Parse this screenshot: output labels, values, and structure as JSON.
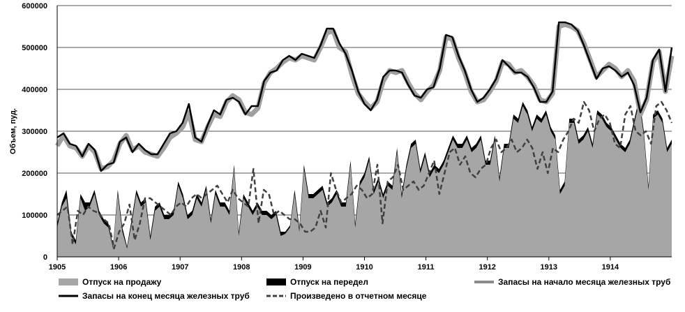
{
  "chart_data": {
    "type": "line",
    "title": "",
    "xlabel": "",
    "ylabel": "Объем, пуд.",
    "ylim": [
      0,
      600000
    ],
    "y_ticks": [
      "0",
      "100000",
      "200000",
      "300000",
      "400000",
      "500000",
      "600000"
    ],
    "x_tick_labels": [
      "1905",
      "1906",
      "1907",
      "1908",
      "1909",
      "1910",
      "1911",
      "1912",
      "1913",
      "1914"
    ],
    "x_start_year": 1905,
    "grid": "horizontal",
    "legend_position": "bottom",
    "series": [
      {
        "name": "Отпуск на продажу",
        "kind": "area",
        "color": "#a6a6a6",
        "values": [
          70000,
          120000,
          140000,
          50000,
          30000,
          140000,
          110000,
          120000,
          150000,
          100000,
          80000,
          70000,
          20000,
          150000,
          60000,
          20000,
          80000,
          150000,
          120000,
          130000,
          40000,
          110000,
          120000,
          90000,
          90000,
          100000,
          170000,
          140000,
          90000,
          100000,
          140000,
          120000,
          160000,
          80000,
          150000,
          120000,
          120000,
          100000,
          210000,
          50000,
          140000,
          120000,
          100000,
          120000,
          100000,
          100000,
          90000,
          100000,
          50000,
          55000,
          70000,
          150000,
          60000,
          210000,
          140000,
          140000,
          150000,
          160000,
          120000,
          130000,
          150000,
          120000,
          120000,
          220000,
          70000,
          170000,
          190000,
          230000,
          150000,
          180000,
          140000,
          170000,
          160000,
          250000,
          140000,
          210000,
          260000,
          270000,
          200000,
          240000,
          190000,
          210000,
          200000,
          220000,
          250000,
          280000,
          260000,
          260000,
          280000,
          250000,
          260000,
          280000,
          220000,
          220000,
          280000,
          180000,
          260000,
          260000,
          330000,
          320000,
          360000,
          340000,
          300000,
          330000,
          320000,
          340000,
          300000,
          280000,
          150000,
          170000,
          320000,
          320000,
          270000,
          280000,
          300000,
          260000,
          340000,
          330000,
          310000,
          300000,
          280000,
          260000,
          250000,
          270000,
          320000,
          370000,
          290000,
          160000,
          330000,
          340000,
          320000,
          250000,
          270000
        ],
        "values_note": ""
      },
      {
        "name": "Отпуск на передел",
        "kind": "area",
        "color": "#000000",
        "values": [
          80000,
          130000,
          160000,
          60000,
          40000,
          150000,
          130000,
          130000,
          160000,
          110000,
          90000,
          80000,
          25000,
          160000,
          70000,
          25000,
          90000,
          160000,
          130000,
          140000,
          50000,
          120000,
          130000,
          100000,
          100000,
          110000,
          180000,
          150000,
          100000,
          110000,
          150000,
          130000,
          170000,
          90000,
          160000,
          130000,
          130000,
          110000,
          220000,
          60000,
          150000,
          130000,
          110000,
          130000,
          110000,
          110000,
          100000,
          110000,
          60000,
          60000,
          75000,
          160000,
          70000,
          220000,
          150000,
          150000,
          160000,
          170000,
          130000,
          140000,
          160000,
          130000,
          130000,
          230000,
          80000,
          180000,
          200000,
          240000,
          160000,
          190000,
          150000,
          180000,
          170000,
          260000,
          150000,
          220000,
          270000,
          280000,
          210000,
          250000,
          200000,
          220000,
          210000,
          230000,
          260000,
          290000,
          270000,
          270000,
          290000,
          260000,
          270000,
          290000,
          230000,
          230000,
          290000,
          190000,
          270000,
          270000,
          340000,
          330000,
          370000,
          350000,
          310000,
          340000,
          330000,
          350000,
          310000,
          290000,
          160000,
          180000,
          330000,
          330000,
          280000,
          290000,
          310000,
          270000,
          350000,
          340000,
          320000,
          310000,
          290000,
          270000,
          260000,
          280000,
          330000,
          380000,
          300000,
          170000,
          340000,
          350000,
          330000,
          260000,
          280000
        ]
      },
      {
        "name": "Запасы на начало  месяца железных труб",
        "kind": "line",
        "color": "#8c8c8c",
        "values": [
          265000,
          290000,
          265000,
          260000,
          240000,
          265000,
          250000,
          210000,
          215000,
          230000,
          270000,
          290000,
          255000,
          265000,
          250000,
          245000,
          240000,
          260000,
          285000,
          295000,
          310000,
          345000,
          280000,
          275000,
          310000,
          340000,
          335000,
          370000,
          385000,
          375000,
          345000,
          340000,
          355000,
          415000,
          440000,
          450000,
          465000,
          475000,
          470000,
          480000,
          475000,
          470000,
          500000,
          535000,
          540000,
          500000,
          490000,
          435000,
          390000,
          370000,
          355000,
          370000,
          420000,
          445000,
          440000,
          445000,
          415000,
          390000,
          375000,
          395000,
          410000,
          445000,
          525000,
          520000,
          475000,
          440000,
          395000,
          370000,
          375000,
          395000,
          420000,
          465000,
          460000,
          440000,
          445000,
          430000,
          410000,
          375000,
          370000,
          390000,
          550000,
          555000,
          550000,
          540000,
          510000,
          470000,
          430000,
          445000,
          460000,
          450000,
          430000,
          445000,
          420000,
          340000,
          375000,
          465000,
          490000,
          395000,
          480000
        ]
      },
      {
        "name": "Запасы на конец  месяца железных труб",
        "kind": "line",
        "color": "#000000",
        "values": [
          285000,
          295000,
          270000,
          265000,
          240000,
          270000,
          255000,
          205000,
          220000,
          225000,
          275000,
          285000,
          250000,
          270000,
          255000,
          245000,
          245000,
          270000,
          295000,
          300000,
          320000,
          365000,
          285000,
          275000,
          315000,
          350000,
          340000,
          375000,
          380000,
          370000,
          340000,
          360000,
          360000,
          420000,
          440000,
          445000,
          470000,
          480000,
          470000,
          485000,
          480000,
          475000,
          505000,
          545000,
          545000,
          510000,
          485000,
          445000,
          395000,
          365000,
          350000,
          375000,
          430000,
          445000,
          445000,
          440000,
          410000,
          385000,
          380000,
          400000,
          405000,
          450000,
          530000,
          525000,
          480000,
          445000,
          400000,
          370000,
          380000,
          400000,
          425000,
          470000,
          455000,
          440000,
          440000,
          430000,
          405000,
          370000,
          370000,
          395000,
          560000,
          560000,
          555000,
          540000,
          505000,
          465000,
          425000,
          450000,
          455000,
          445000,
          430000,
          440000,
          410000,
          345000,
          380000,
          470000,
          495000,
          395000,
          500000
        ]
      },
      {
        "name": "Произведено  в отчетном месяце",
        "kind": "dashed-line",
        "color": "#404040",
        "values": [
          100000,
          110000,
          120000,
          30000,
          110000,
          100000,
          120000,
          110000,
          105000,
          90000,
          80000,
          20000,
          60000,
          80000,
          125000,
          40000,
          80000,
          140000,
          140000,
          130000,
          120000,
          110000,
          100000,
          120000,
          130000,
          120000,
          140000,
          150000,
          140000,
          150000,
          160000,
          170000,
          150000,
          130000,
          160000,
          140000,
          130000,
          120000,
          210000,
          80000,
          160000,
          150000,
          100000,
          110000,
          100000,
          90000,
          90000,
          80000,
          60000,
          60000,
          70000,
          110000,
          70000,
          200000,
          160000,
          130000,
          140000,
          150000,
          170000,
          160000,
          140000,
          150000,
          220000,
          80000,
          180000,
          190000,
          220000,
          160000,
          170000,
          180000,
          160000,
          170000,
          200000,
          230000,
          150000,
          200000,
          250000,
          260000,
          220000,
          240000,
          200000,
          190000,
          210000,
          220000,
          260000,
          280000,
          250000,
          260000,
          280000,
          250000,
          260000,
          280000,
          260000,
          210000,
          250000,
          200000,
          260000,
          250000,
          280000,
          300000,
          330000,
          320000,
          370000,
          350000,
          300000,
          330000,
          340000,
          320000,
          270000,
          260000,
          340000,
          360000,
          300000,
          290000,
          300000,
          270000,
          360000,
          370000,
          350000,
          320000
        ]
      }
    ]
  }
}
